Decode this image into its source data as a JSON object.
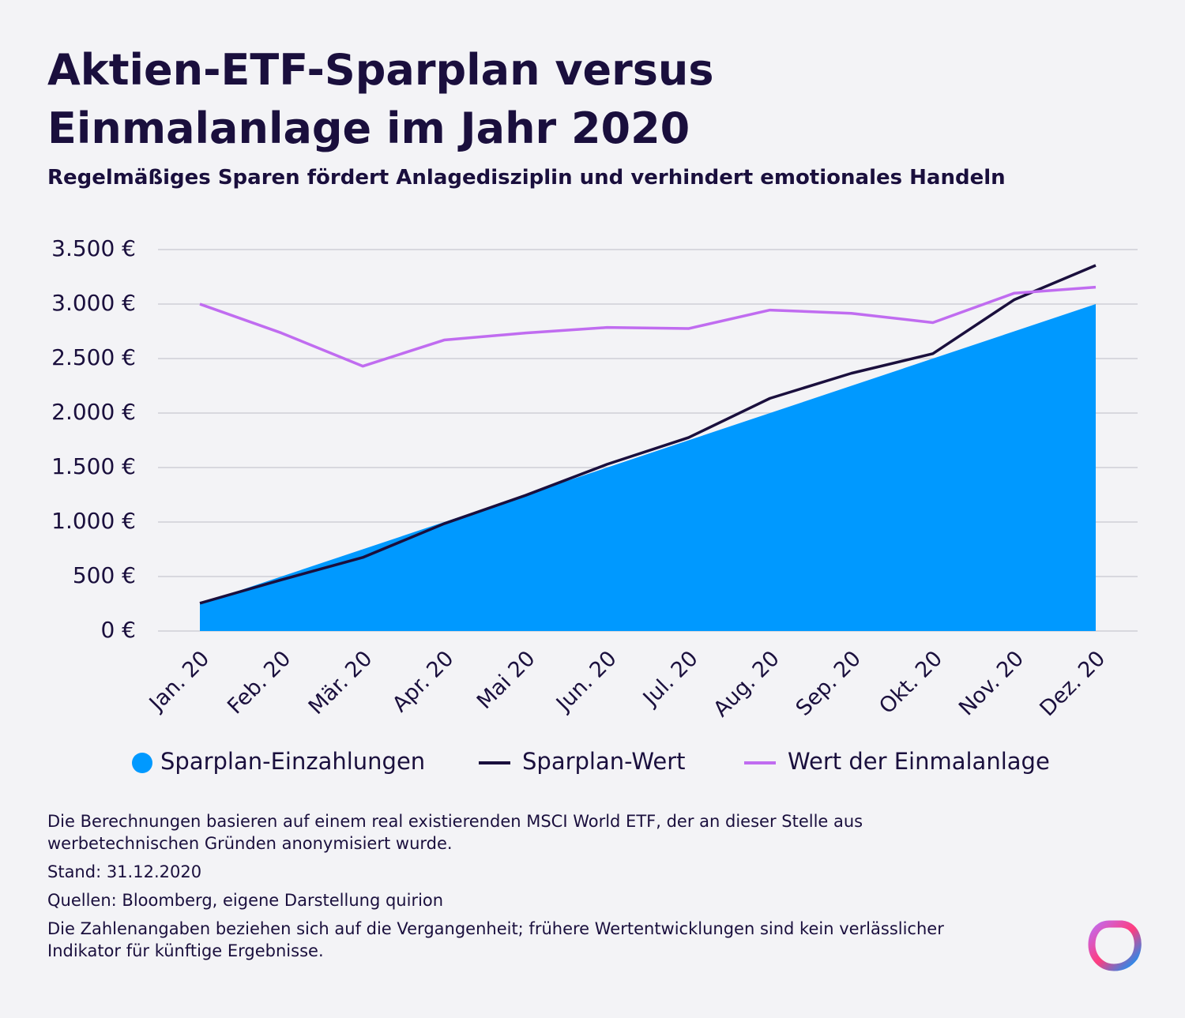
{
  "chart_data": {
    "type": "line",
    "title": "Aktien-ETF-Sparplan versus Einmalanlage im Jahr 2020",
    "subtitle": "Regelmäßiges Sparen fördert Anlagedisziplin und verhindert emotionales Handeln",
    "categories": [
      "Jan. 20",
      "Feb. 20",
      "Mär. 20",
      "Apr. 20",
      "Mai 20",
      "Jun. 20",
      "Jul. 20",
      "Aug. 20",
      "Sep. 20",
      "Okt. 20",
      "Nov. 20",
      "Dez. 20"
    ],
    "series": [
      {
        "name": "Sparplan-Einzahlungen",
        "type": "area",
        "color": "#0099ff",
        "values": [
          250,
          500,
          750,
          1000,
          1250,
          1500,
          1750,
          2000,
          2250,
          2500,
          2750,
          3000
        ]
      },
      {
        "name": "Sparplan-Wert",
        "type": "line",
        "color": "#1a0f3d",
        "values": [
          255,
          470,
          675,
          985,
          1245,
          1530,
          1775,
          2135,
          2365,
          2545,
          3040,
          3355
        ]
      },
      {
        "name": "Wert der Einmalanlage",
        "type": "line",
        "color": "#c06cf0",
        "values": [
          3000,
          2735,
          2430,
          2670,
          2735,
          2785,
          2775,
          2945,
          2915,
          2830,
          3100,
          3155
        ]
      }
    ],
    "ylim": [
      0,
      3500
    ],
    "yticks": [
      {
        "value": 0,
        "label": "0 €"
      },
      {
        "value": 500,
        "label": "500 €"
      },
      {
        "value": 1000,
        "label": "1.000 €"
      },
      {
        "value": 1500,
        "label": "1.500 €"
      },
      {
        "value": 2000,
        "label": "2.000 €"
      },
      {
        "value": 2500,
        "label": "2.500 €"
      },
      {
        "value": 3000,
        "label": "3.000 €"
      },
      {
        "value": 3500,
        "label": "3.500 €"
      }
    ],
    "grid": true,
    "notes": [
      "Die Berechnungen basieren auf einem real existierenden MSCI World ETF, der an dieser Stelle aus werbetechnischen Gründen anonymisiert wurde.",
      "Stand: 31.12.2020",
      "Quellen: Bloomberg, eigene Darstellung quirion",
      "Die Zahlenangaben beziehen sich auf die Vergangenheit; frühere Wertentwicklungen sind kein verlässlicher Indikator für künftige Ergebnisse."
    ]
  }
}
